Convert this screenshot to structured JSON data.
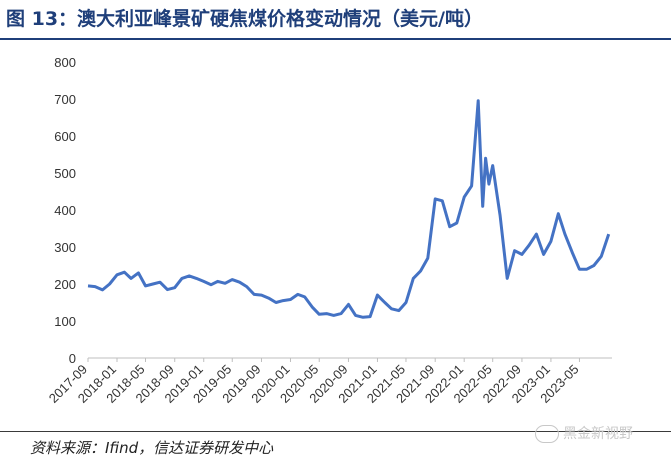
{
  "title": "图 13：澳大利亚峰景矿硬焦煤价格变动情况（美元/吨）",
  "source": "资料来源：Ifind，信达证券研发中心",
  "watermark": "黑金新视野",
  "chart_data": {
    "type": "line",
    "title": "图 13：澳大利亚峰景矿硬焦煤价格变动情况（美元/吨）",
    "xlabel": "",
    "ylabel": "",
    "ylim": [
      0,
      800
    ],
    "yticks": [
      "0",
      "100",
      "200",
      "300",
      "400",
      "500",
      "600",
      "700",
      "800"
    ],
    "xticks": [
      "2017-09",
      "2018-01",
      "2018-05",
      "2018-09",
      "2019-01",
      "2019-05",
      "2019-09",
      "2020-01",
      "2020-05",
      "2020-09",
      "2021-01",
      "2021-05",
      "2021-09",
      "2022-01",
      "2022-05",
      "2022-09",
      "2023-01",
      "2023-05"
    ],
    "grid": false,
    "legend": "none",
    "line_color": "#4472c4",
    "series": [
      {
        "points": [
          [
            "2017-09-01",
            195
          ],
          [
            "2017-10-01",
            193
          ],
          [
            "2017-11-01",
            184
          ],
          [
            "2017-12-01",
            200
          ],
          [
            "2018-01-01",
            225
          ],
          [
            "2018-02-01",
            232
          ],
          [
            "2018-03-01",
            215
          ],
          [
            "2018-04-01",
            230
          ],
          [
            "2018-05-01",
            195
          ],
          [
            "2018-06-01",
            200
          ],
          [
            "2018-07-01",
            205
          ],
          [
            "2018-08-01",
            185
          ],
          [
            "2018-09-01",
            190
          ],
          [
            "2018-10-01",
            215
          ],
          [
            "2018-11-01",
            222
          ],
          [
            "2018-12-01",
            215
          ],
          [
            "2019-01-01",
            207
          ],
          [
            "2019-02-01",
            198
          ],
          [
            "2019-03-01",
            207
          ],
          [
            "2019-04-01",
            202
          ],
          [
            "2019-05-01",
            212
          ],
          [
            "2019-06-01",
            205
          ],
          [
            "2019-07-01",
            193
          ],
          [
            "2019-08-01",
            172
          ],
          [
            "2019-09-01",
            170
          ],
          [
            "2019-10-01",
            162
          ],
          [
            "2019-11-01",
            150
          ],
          [
            "2019-12-01",
            155
          ],
          [
            "2020-01-01",
            158
          ],
          [
            "2020-02-01",
            172
          ],
          [
            "2020-03-01",
            165
          ],
          [
            "2020-04-01",
            138
          ],
          [
            "2020-05-01",
            118
          ],
          [
            "2020-06-01",
            120
          ],
          [
            "2020-07-01",
            115
          ],
          [
            "2020-08-01",
            120
          ],
          [
            "2020-09-01",
            145
          ],
          [
            "2020-10-01",
            115
          ],
          [
            "2020-11-01",
            110
          ],
          [
            "2020-12-01",
            112
          ],
          [
            "2021-01-01",
            170
          ],
          [
            "2021-02-01",
            150
          ],
          [
            "2021-03-01",
            133
          ],
          [
            "2021-04-01",
            128
          ],
          [
            "2021-05-01",
            150
          ],
          [
            "2021-06-01",
            215
          ],
          [
            "2021-07-01",
            235
          ],
          [
            "2021-08-01",
            270
          ],
          [
            "2021-09-01",
            430
          ],
          [
            "2021-10-01",
            425
          ],
          [
            "2021-11-01",
            355
          ],
          [
            "2021-12-01",
            365
          ],
          [
            "2022-01-01",
            435
          ],
          [
            "2022-02-01",
            465
          ],
          [
            "2022-03-01",
            695
          ],
          [
            "2022-03-20",
            410
          ],
          [
            "2022-04-01",
            540
          ],
          [
            "2022-04-15",
            470
          ],
          [
            "2022-05-01",
            520
          ],
          [
            "2022-06-01",
            385
          ],
          [
            "2022-07-01",
            215
          ],
          [
            "2022-08-01",
            290
          ],
          [
            "2022-09-01",
            280
          ],
          [
            "2022-10-01",
            305
          ],
          [
            "2022-11-01",
            335
          ],
          [
            "2022-12-01",
            280
          ],
          [
            "2023-01-01",
            315
          ],
          [
            "2023-02-01",
            390
          ],
          [
            "2023-03-01",
            335
          ],
          [
            "2023-04-01",
            285
          ],
          [
            "2023-05-01",
            240
          ],
          [
            "2023-06-01",
            240
          ],
          [
            "2023-07-01",
            250
          ],
          [
            "2023-08-01",
            275
          ],
          [
            "2023-09-01",
            335
          ]
        ]
      }
    ]
  }
}
